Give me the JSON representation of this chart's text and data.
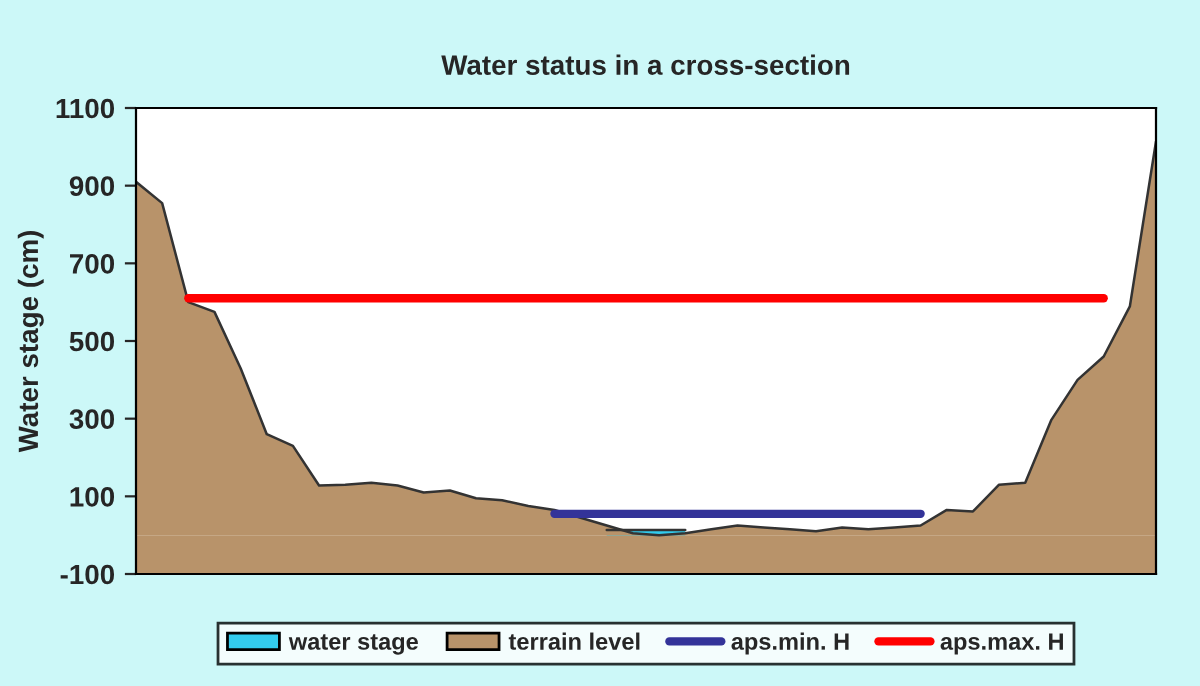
{
  "chart_data": {
    "type": "area",
    "title": "Water status in a cross-section",
    "ylabel": "Water stage (cm)",
    "categories": [
      null,
      null,
      null,
      null,
      null,
      null,
      null,
      null,
      null,
      null,
      null,
      null,
      null,
      null,
      null,
      null,
      null,
      null,
      null,
      null,
      null,
      null,
      null,
      null,
      null,
      null,
      null,
      null,
      null,
      null,
      null,
      null,
      null,
      null,
      null,
      null,
      null,
      null,
      null,
      null
    ],
    "series": [
      {
        "name": "water stage",
        "color": "#33ccee",
        "values": [
          null,
          null,
          null,
          null,
          null,
          null,
          null,
          null,
          null,
          null,
          null,
          null,
          null,
          null,
          null,
          null,
          null,
          null,
          13,
          13,
          13,
          13,
          null,
          null,
          null,
          null,
          null,
          null,
          null,
          null,
          null,
          null,
          null,
          null,
          null,
          null,
          null,
          null,
          null,
          null
        ]
      },
      {
        "name": "terrain level",
        "color": "#b8936a",
        "values": [
          910,
          855,
          600,
          575,
          430,
          260,
          230,
          128,
          130,
          135,
          128,
          110,
          115,
          95,
          90,
          75,
          65,
          45,
          25,
          5,
          0,
          5,
          15,
          25,
          20,
          15,
          10,
          20,
          15,
          20,
          25,
          65,
          61,
          130,
          135,
          297,
          400,
          460,
          589,
          1014
        ]
      },
      {
        "name": "aps.min. H",
        "type": "line",
        "color": "#333399",
        "values": [
          null,
          null,
          null,
          null,
          null,
          null,
          null,
          null,
          null,
          null,
          null,
          null,
          null,
          null,
          null,
          null,
          55,
          55,
          55,
          55,
          55,
          55,
          55,
          55,
          55,
          55,
          55,
          55,
          55,
          55,
          55,
          null,
          null,
          null,
          null,
          null,
          null,
          null,
          null,
          null
        ]
      },
      {
        "name": "aps.max. H",
        "type": "line",
        "color": "#ff0000",
        "values": [
          null,
          null,
          610,
          610,
          610,
          610,
          610,
          610,
          610,
          610,
          610,
          610,
          610,
          610,
          610,
          610,
          610,
          610,
          610,
          610,
          610,
          610,
          610,
          610,
          610,
          610,
          610,
          610,
          610,
          610,
          610,
          610,
          610,
          610,
          610,
          610,
          610,
          610,
          null,
          null
        ]
      }
    ],
    "ylim": [
      -100,
      1100
    ],
    "yticks": [
      -100,
      100,
      300,
      500,
      700,
      900,
      1100
    ],
    "tick_labels": "y",
    "grid": false,
    "legend": "bottom"
  }
}
